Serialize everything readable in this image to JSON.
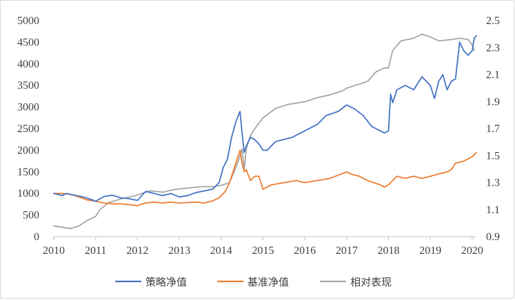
{
  "chart_data": {
    "type": "line",
    "x_ticks": [
      "2010",
      "2011",
      "2012",
      "2013",
      "2014",
      "2015",
      "2016",
      "2017",
      "2018",
      "2019",
      "2020"
    ],
    "xlim": [
      2010,
      2020.1
    ],
    "y_left_ticks": [
      "0",
      "500",
      "1000",
      "1500",
      "2000",
      "2500",
      "3000",
      "3500",
      "4000",
      "4500",
      "5000"
    ],
    "ylim_left": [
      0,
      5000
    ],
    "y_right_ticks": [
      "0.9",
      "1.1",
      "1.3",
      "1.5",
      "1.7",
      "1.9",
      "2.1",
      "2.3",
      "2.5"
    ],
    "ylim_right": [
      0.9,
      2.5
    ],
    "legend_position": "bottom",
    "colors": {
      "strategy": "#4472c4",
      "benchmark": "#ed7d31",
      "relative": "#a5a5a5"
    },
    "series": [
      {
        "name": "策略净值",
        "axis": "left",
        "color": "#4472c4",
        "x": [
          2010.0,
          2010.1,
          2010.2,
          2010.3,
          2010.5,
          2010.7,
          2010.9,
          2011.0,
          2011.2,
          2011.4,
          2011.6,
          2011.8,
          2012.0,
          2012.1,
          2012.2,
          2012.4,
          2012.6,
          2012.8,
          2013.0,
          2013.2,
          2013.4,
          2013.6,
          2013.8,
          2013.95,
          2014.05,
          2014.15,
          2014.25,
          2014.35,
          2014.45,
          2014.5,
          2014.55,
          2014.6,
          2014.7,
          2014.8,
          2014.9,
          2015.0,
          2015.1,
          2015.3,
          2015.5,
          2015.7,
          2016.0,
          2016.3,
          2016.5,
          2016.8,
          2017.0,
          2017.2,
          2017.4,
          2017.6,
          2017.8,
          2017.9,
          2018.0,
          2018.05,
          2018.1,
          2018.2,
          2018.4,
          2018.6,
          2018.8,
          2019.0,
          2019.1,
          2019.2,
          2019.3,
          2019.4,
          2019.5,
          2019.6,
          2019.7,
          2019.8,
          2019.9,
          2020.0,
          2020.05,
          2020.1
        ],
        "y": [
          1000,
          980,
          950,
          1000,
          960,
          920,
          860,
          820,
          930,
          960,
          900,
          880,
          840,
          950,
          1050,
          1000,
          950,
          1000,
          920,
          950,
          1020,
          1060,
          1100,
          1250,
          1600,
          1800,
          2300,
          2650,
          2900,
          2400,
          1950,
          2100,
          2300,
          2250,
          2150,
          2000,
          2000,
          2200,
          2250,
          2300,
          2450,
          2600,
          2800,
          2900,
          3050,
          2950,
          2800,
          2550,
          2450,
          2400,
          2450,
          3300,
          3100,
          3400,
          3500,
          3400,
          3700,
          3500,
          3200,
          3600,
          3750,
          3400,
          3600,
          3650,
          4500,
          4300,
          4200,
          4300,
          4600,
          4650
        ]
      },
      {
        "name": "基准净值",
        "axis": "left",
        "color": "#ed7d31",
        "x": [
          2010.0,
          2010.2,
          2010.4,
          2010.6,
          2010.8,
          2011.0,
          2011.2,
          2011.4,
          2011.6,
          2011.8,
          2012.0,
          2012.2,
          2012.4,
          2012.6,
          2012.8,
          2013.0,
          2013.2,
          2013.4,
          2013.6,
          2013.8,
          2013.95,
          2014.1,
          2014.2,
          2014.3,
          2014.4,
          2014.45,
          2014.5,
          2014.55,
          2014.6,
          2014.7,
          2014.8,
          2014.9,
          2015.0,
          2015.2,
          2015.5,
          2015.8,
          2016.0,
          2016.3,
          2016.6,
          2017.0,
          2017.1,
          2017.3,
          2017.5,
          2017.8,
          2017.9,
          2018.0,
          2018.1,
          2018.2,
          2018.4,
          2018.6,
          2018.8,
          2019.0,
          2019.2,
          2019.4,
          2019.5,
          2019.6,
          2019.8,
          2020.0,
          2020.1
        ],
        "y": [
          1000,
          1000,
          980,
          920,
          850,
          820,
          780,
          760,
          760,
          740,
          720,
          780,
          800,
          780,
          800,
          780,
          790,
          800,
          780,
          830,
          900,
          1050,
          1250,
          1550,
          1850,
          2000,
          1700,
          1500,
          1550,
          1300,
          1400,
          1400,
          1100,
          1200,
          1250,
          1300,
          1250,
          1300,
          1350,
          1500,
          1450,
          1400,
          1300,
          1200,
          1150,
          1200,
          1300,
          1400,
          1350,
          1400,
          1350,
          1400,
          1450,
          1500,
          1550,
          1700,
          1750,
          1850,
          1950
        ]
      },
      {
        "name": "相对表现",
        "axis": "right",
        "color": "#a5a5a5",
        "x": [
          2010.0,
          2010.2,
          2010.4,
          2010.6,
          2010.8,
          2011.0,
          2011.1,
          2011.3,
          2011.6,
          2011.9,
          2012.1,
          2012.3,
          2012.6,
          2012.9,
          2013.2,
          2013.5,
          2013.8,
          2014.0,
          2014.2,
          2014.4,
          2014.5,
          2014.55,
          2014.6,
          2014.7,
          2014.85,
          2015.0,
          2015.3,
          2015.6,
          2016.0,
          2016.3,
          2016.6,
          2016.9,
          2017.0,
          2017.2,
          2017.5,
          2017.7,
          2017.9,
          2018.0,
          2018.1,
          2018.3,
          2018.6,
          2018.8,
          2019.0,
          2019.2,
          2019.5,
          2019.7,
          2019.9,
          2020.0,
          2020.05
        ],
        "y": [
          0.98,
          0.97,
          0.96,
          0.98,
          1.02,
          1.05,
          1.1,
          1.15,
          1.18,
          1.2,
          1.22,
          1.24,
          1.23,
          1.25,
          1.26,
          1.27,
          1.27,
          1.28,
          1.3,
          1.45,
          1.55,
          1.4,
          1.55,
          1.65,
          1.72,
          1.78,
          1.85,
          1.88,
          1.9,
          1.93,
          1.95,
          1.98,
          2.0,
          2.02,
          2.05,
          2.12,
          2.15,
          2.15,
          2.28,
          2.35,
          2.37,
          2.4,
          2.38,
          2.35,
          2.36,
          2.37,
          2.36,
          2.32,
          2.28
        ]
      }
    ]
  }
}
